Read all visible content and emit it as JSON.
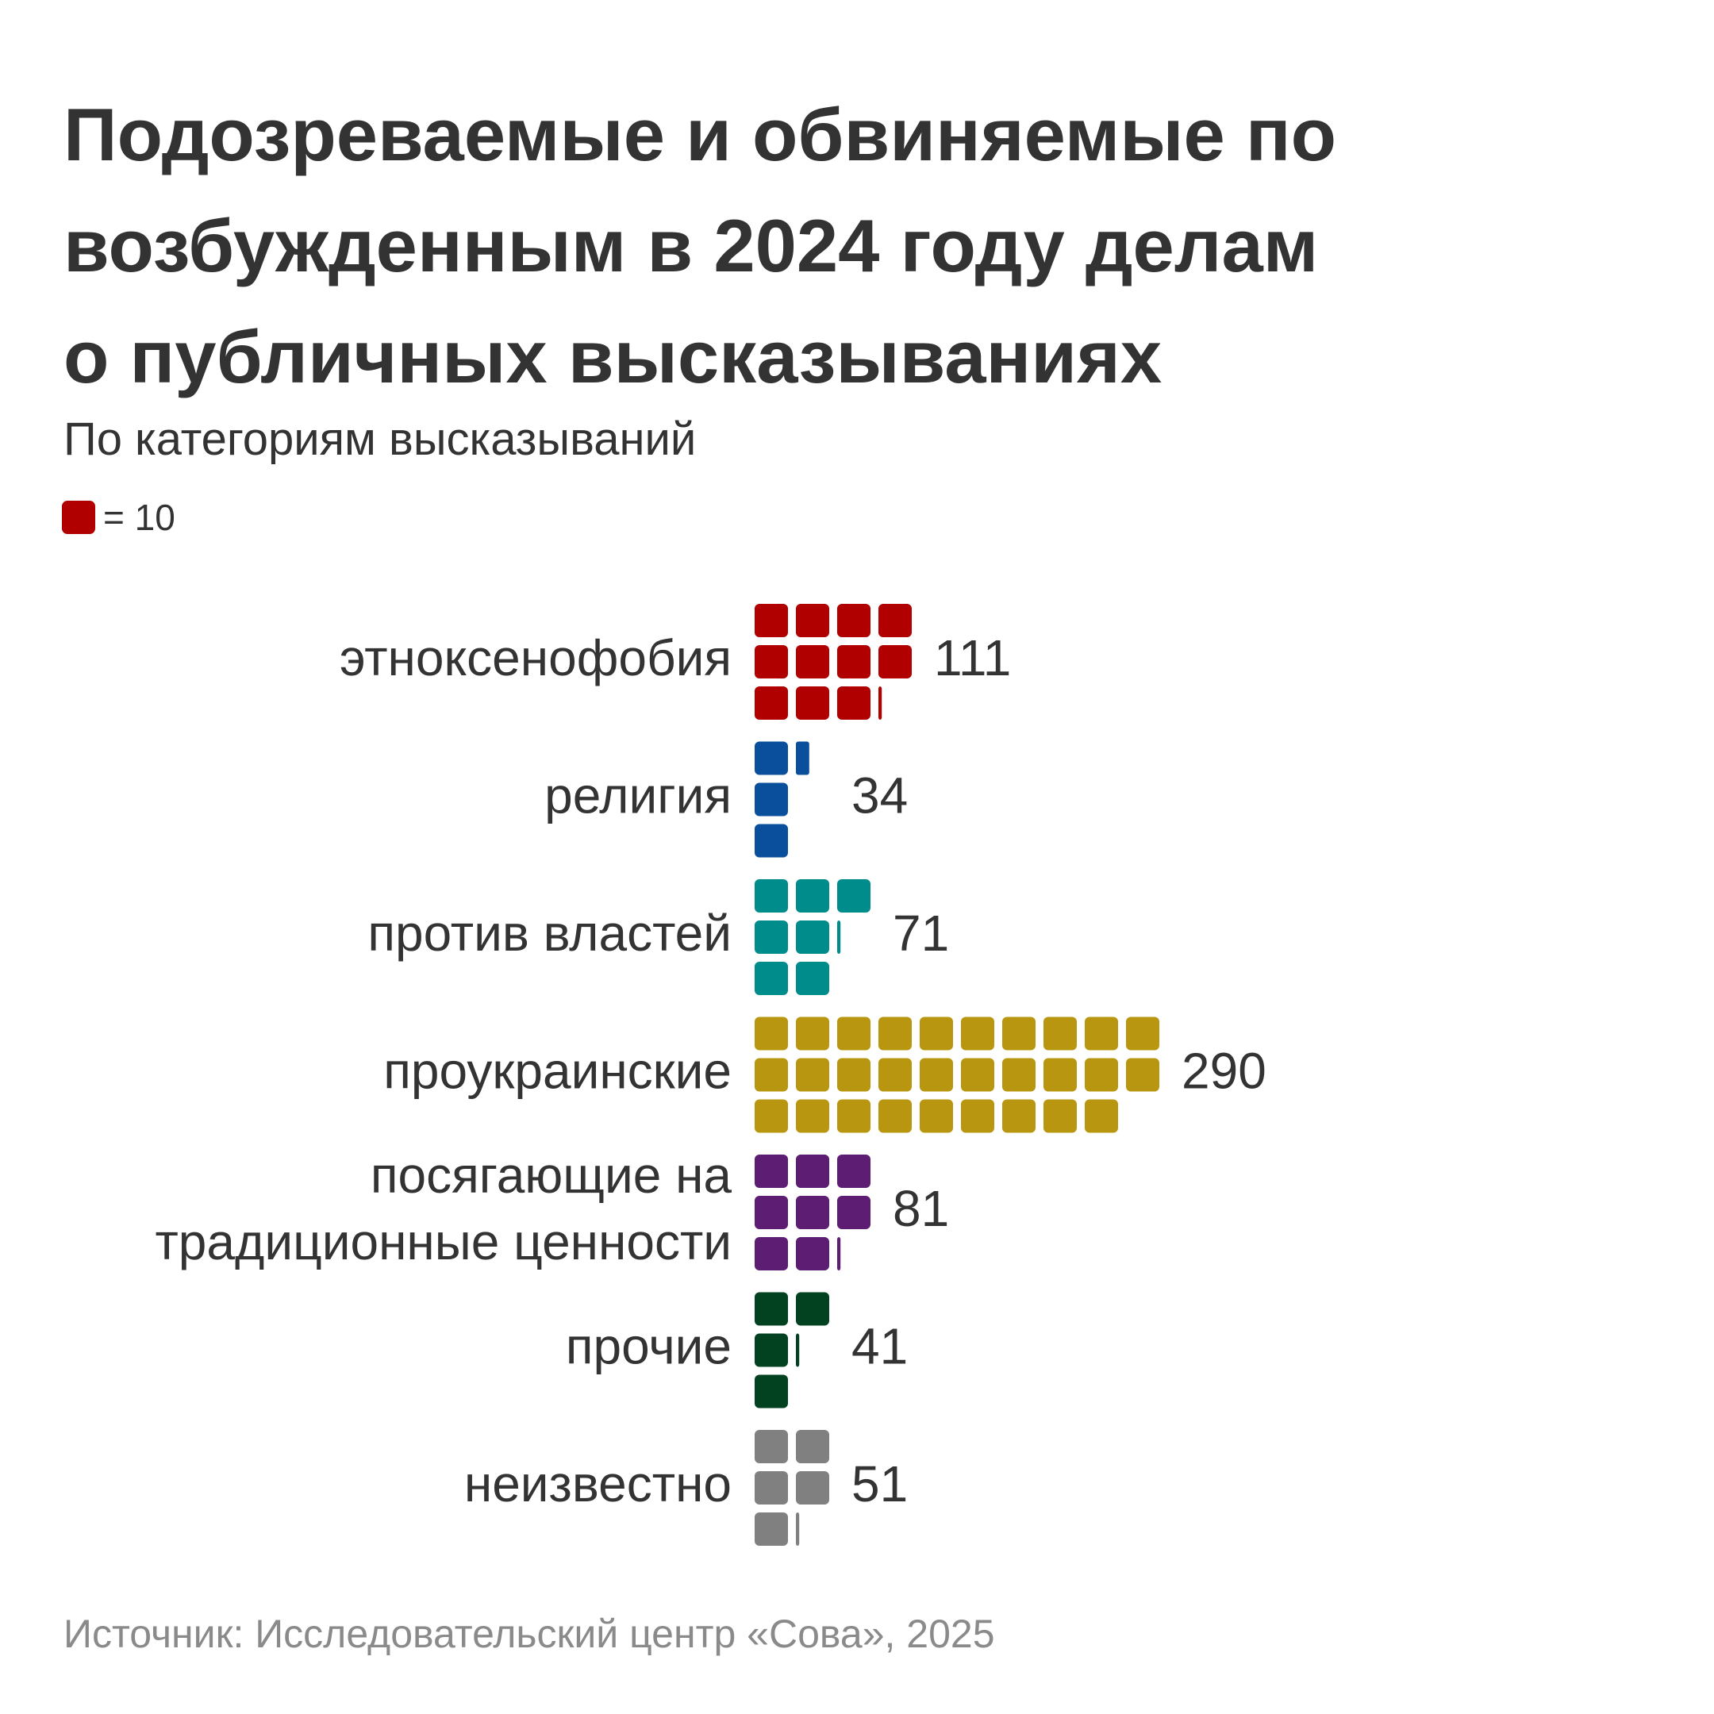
{
  "header": {
    "title_lines": [
      "Подозреваемые и обвиняемые по",
      "возбужденным в 2024 году делам",
      "о публичных высказываниях"
    ],
    "subtitle": "По категориям высказываний",
    "legend": {
      "text": "= 10",
      "color": "#b00000"
    }
  },
  "footer": {
    "source": "Источник: Исследовательский центр «Сова», 2025"
  },
  "chart_data": {
    "type": "waffle",
    "title": "Подозреваемые и обвиняемые по возбужденным в 2024 году делам о публичных высказываниях",
    "subtitle": "По категориям высказываний",
    "unit_value": 10,
    "unit_label": "= 10",
    "rows_per_group": 3,
    "categories": [
      {
        "label": [
          "этноксенофобия"
        ],
        "value": 111,
        "value_label": "111",
        "color": "#b00000"
      },
      {
        "label": [
          "религия"
        ],
        "value": 34,
        "value_label": "34",
        "color": "#0a4f9c"
      },
      {
        "label": [
          "против властей"
        ],
        "value": 71,
        "value_label": "71",
        "color": "#008c8a"
      },
      {
        "label": [
          "проукраинские"
        ],
        "value": 290,
        "value_label": "290",
        "color": "#b9960f"
      },
      {
        "label": [
          "посягающие на",
          "традиционные ценности"
        ],
        "value": 81,
        "value_label": "81",
        "color": "#5c1d73"
      },
      {
        "label": [
          "прочие"
        ],
        "value": 41,
        "value_label": "41",
        "color": "#024220"
      },
      {
        "label": [
          "неизвестно"
        ],
        "value": 51,
        "value_label": "51",
        "color": "#808080"
      }
    ]
  }
}
